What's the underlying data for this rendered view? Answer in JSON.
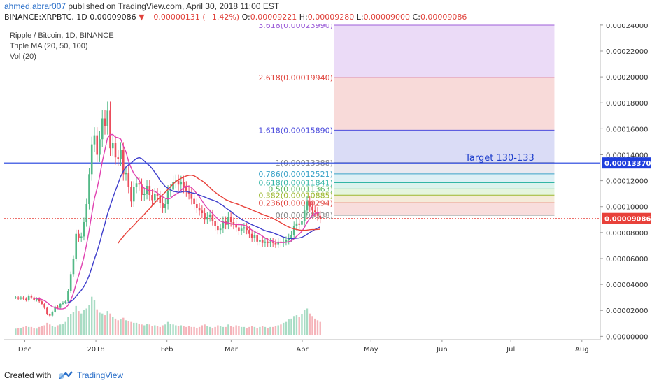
{
  "header": {
    "user": "ahmed.abrar007",
    "published": "published on TradingView.com, April 30, 2018 11:00 EST",
    "symbol": "BINANCE:XRPBTC, 1D",
    "last": "0.00009086",
    "change_arrow": "▼",
    "change": "−0.00000131 (−1.42%)",
    "o_label": "O:",
    "o_value": "0.00009221",
    "h_label": "H:",
    "h_value": "0.00009280",
    "l_label": "L:",
    "l_value": "0.00009000",
    "c_label": "C:",
    "c_value": "0.00009086"
  },
  "legend": {
    "title": "Ripple / Bitcoin, 1D, BINANCE",
    "ma": "Triple MA (20, 50, 100)",
    "vol": "Vol (20)"
  },
  "footer": {
    "created": "Created with",
    "brand": "TradingView",
    "logo_icon": "tradingview-cloud-icon"
  },
  "colors": {
    "up": "#53b987",
    "down": "#eb4d5c",
    "ma20": "#e040b0",
    "ma50": "#3f3fcc",
    "ma100": "#e8413a",
    "last_price": "#e8413a",
    "hline": "#1f3fdd",
    "target_text": "#1f3fcc"
  },
  "chart_data": {
    "type": "candlestick",
    "x_axis_labels": [
      "Dec",
      "2018",
      "Feb",
      "Mar",
      "Apr",
      "May",
      "Jun",
      "Jul",
      "Aug"
    ],
    "y_axis_labels": [
      "0.00024000",
      "0.00022000",
      "0.00020000",
      "0.00018000",
      "0.00016000",
      "0.00014000",
      "0.00012000",
      "0.00010000",
      "0.00008000",
      "0.00006000",
      "0.00004000",
      "0.00002000",
      "0.00000000"
    ],
    "ylim": [
      -2.5e-06,
      0.000241
    ],
    "y_ticks": [
      0.00024,
      0.00022,
      0.0002,
      0.00018,
      0.00016,
      0.00014,
      0.00012,
      0.0001,
      8e-05,
      6e-05,
      4e-05,
      2e-05,
      0.0
    ],
    "last_price": {
      "value": 9.086e-05,
      "label": "0.00009086"
    },
    "horizontal_line": {
      "value": 0.0001337,
      "label": "0.00013370"
    },
    "annotation": "Target 130-133",
    "fib_levels": [
      {
        "ratio": "3.618",
        "value": 0.0002399,
        "label": "3.618(0.00023990)",
        "color": "#9c5ed8",
        "fill": "#e6d2f5"
      },
      {
        "ratio": "2.618",
        "value": 0.0001994,
        "label": "2.618(0.00019940)",
        "color": "#e0433c",
        "fill": "#f6d1d0"
      },
      {
        "ratio": "1.618",
        "value": 0.0001589,
        "label": "1.618(0.00015890)",
        "color": "#4d4ddd",
        "fill": "#d1d3f4"
      },
      {
        "ratio": "1",
        "value": 0.00013388,
        "label": "1(0.00013388)",
        "color": "#888888",
        "fill": "#e4e4ec"
      },
      {
        "ratio": "0.786",
        "value": 0.00012521,
        "label": "0.786(0.00012521)",
        "color": "#3aa3c8",
        "fill": "#d4ecf2"
      },
      {
        "ratio": "0.618",
        "value": 0.00011841,
        "label": "0.618(0.00011841)",
        "color": "#33b5a5",
        "fill": "#d3f0e8"
      },
      {
        "ratio": "0.5",
        "value": 0.00011363,
        "label": "0.5(0.00011363)",
        "color": "#5cb85c",
        "fill": "#dff2d6"
      },
      {
        "ratio": "0.382",
        "value": 0.00010885,
        "label": "0.382(0.00010885)",
        "color": "#9bb82e",
        "fill": "#f2e6cf"
      },
      {
        "ratio": "0.236",
        "value": 0.00010294,
        "label": "0.236(0.00010294)",
        "color": "#e0433c",
        "fill": "#f6d4d3"
      },
      {
        "ratio": "0",
        "value": 9.338e-05,
        "label": "0(0.00009338)",
        "color": "#888888",
        "fill": null
      }
    ],
    "x_range_days": [
      0,
      260
    ],
    "fib_days": [
      144,
      240
    ],
    "x_label_days": [
      9,
      40,
      71,
      99,
      130,
      160,
      191,
      221,
      252
    ],
    "candles_close": [
      3.0,
      2.9,
      3.0,
      2.9,
      2.8,
      3.1,
      3.0,
      2.8,
      2.9,
      2.7,
      2.5,
      2.2,
      1.7,
      1.6,
      1.9,
      2.3,
      2.2,
      2.5,
      2.6,
      2.7,
      3.5,
      4.8,
      6.0,
      7.9,
      7.6,
      7.7,
      8.8,
      10.2,
      12.5,
      14.8,
      15.5,
      14.0,
      15.2,
      16.8,
      16.2,
      17.4,
      14.5,
      14.9,
      13.8,
      13.7,
      14.4,
      12.5,
      12.6,
      11.5,
      10.4,
      11.5,
      11.8,
      11.7,
      10.9,
      11.0,
      11.6,
      10.9,
      10.5,
      11.0,
      10.8,
      10.3,
      9.9,
      10.2,
      11.2,
      11.3,
      11.9,
      12.0,
      11.7,
      11.9,
      11.5,
      11.2,
      11.0,
      10.6,
      10.2,
      9.9,
      9.7,
      9.5,
      9.0,
      9.2,
      9.4,
      8.9,
      8.5,
      8.2,
      8.3,
      8.9,
      8.6,
      9.2,
      8.8,
      8.6,
      8.4,
      8.1,
      8.3,
      8.4,
      8.2,
      7.9,
      7.6,
      7.8,
      7.3,
      7.4,
      7.2,
      7.3,
      7.2,
      7.3,
      7.2,
      7.1,
      7.3,
      7.2,
      7.3,
      7.4,
      7.6,
      7.8,
      8.5,
      8.7,
      8.6,
      8.9,
      9.7,
      10.4,
      10.0,
      9.7,
      9.6,
      9.3,
      9.1
    ],
    "volumes": [
      0.8,
      0.9,
      0.9,
      1.0,
      1.1,
      1.0,
      1.0,
      0.9,
      0.8,
      1.0,
      1.1,
      1.2,
      1.5,
      1.3,
      1.1,
      1.0,
      1.2,
      1.3,
      1.4,
      1.6,
      2.2,
      2.5,
      2.8,
      3.5,
      2.9,
      2.6,
      3.0,
      3.2,
      3.6,
      4.6,
      4.2,
      3.1,
      2.7,
      2.6,
      2.4,
      2.9,
      2.6,
      2.2,
      2.0,
      1.8,
      1.9,
      2.1,
      1.8,
      1.7,
      1.6,
      1.5,
      1.5,
      1.4,
      1.3,
      1.2,
      1.4,
      1.3,
      1.1,
      1.2,
      1.1,
      1.0,
      1.2,
      1.3,
      1.6,
      1.4,
      1.3,
      1.2,
      1.1,
      1.2,
      1.1,
      1.0,
      1.1,
      1.0,
      1.0,
      0.9,
      1.0,
      1.2,
      1.3,
      1.1,
      1.0,
      0.9,
      1.0,
      1.2,
      1.1,
      1.0,
      1.0,
      1.3,
      1.1,
      1.0,
      1.2,
      1.1,
      1.0,
      1.0,
      0.9,
      1.0,
      1.1,
      1.0,
      0.9,
      1.0,
      1.1,
      1.0,
      0.9,
      1.0,
      1.0,
      1.1,
      1.2,
      1.3,
      1.5,
      1.6,
      1.9,
      2.0,
      2.3,
      2.4,
      2.2,
      2.5,
      3.0,
      3.2,
      2.6,
      2.3,
      2.0,
      1.8,
      1.6
    ],
    "volume_scale_note": "candles in 1e-5 BTC units",
    "ma_colors_note": "MA20 pink, MA50 blue, MA100 red"
  }
}
